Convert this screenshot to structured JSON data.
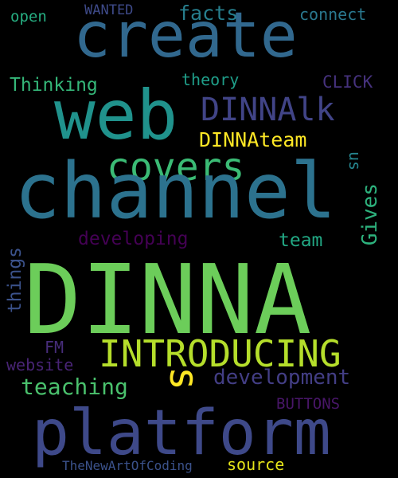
{
  "cloud": {
    "background": "#000000",
    "words": {
      "dinna": {
        "text": "DINNA",
        "color": "#6ccd5a"
      },
      "channel": {
        "text": "channel",
        "color": "#2c728e"
      },
      "create": {
        "text": "create",
        "color": "#31688e"
      },
      "web": {
        "text": "web",
        "color": "#20928c"
      },
      "platform": {
        "text": "platform",
        "color": "#3e4989"
      },
      "introducing": {
        "text": "INTRODUCING",
        "color": "#b5de2b"
      },
      "dinnalk": {
        "text": "DINNAlk",
        "color": "#414487"
      },
      "covers": {
        "text": "covers",
        "color": "#3bbb75"
      },
      "development": {
        "text": "development",
        "color": "#433e85"
      },
      "teaching": {
        "text": "teaching",
        "color": "#4ac16d"
      },
      "s": {
        "text": "s",
        "color": "#fde725"
      },
      "dinnateam": {
        "text": "DINNAteam",
        "color": "#fde725"
      },
      "developing": {
        "text": "developing",
        "color": "#440154"
      },
      "team": {
        "text": "team",
        "color": "#22a884"
      },
      "gives": {
        "text": "Gives",
        "color": "#2db27d"
      },
      "us": {
        "text": "us",
        "color": "#25858e"
      },
      "thinking": {
        "text": "Thinking",
        "color": "#35b779"
      },
      "theory": {
        "text": "theory",
        "color": "#1f9e89"
      },
      "click": {
        "text": "CLICK",
        "color": "#46327e"
      },
      "things": {
        "text": "things",
        "color": "#3b528b"
      },
      "fm": {
        "text": "FM",
        "color": "#472d7b"
      },
      "website": {
        "text": "website",
        "color": "#482475"
      },
      "buttons": {
        "text": "BUTTONS",
        "color": "#481668"
      },
      "source": {
        "text": "source",
        "color": "#e5e419"
      },
      "tnaoc": {
        "text": "TheNewArtOfCoding",
        "color": "#3b528b"
      },
      "open": {
        "text": "open",
        "color": "#26ad81"
      },
      "wanted": {
        "text": "WANTED",
        "color": "#3e4a89"
      },
      "facts": {
        "text": "facts",
        "color": "#277f8e"
      },
      "connect": {
        "text": "connect",
        "color": "#2a788e"
      }
    }
  }
}
